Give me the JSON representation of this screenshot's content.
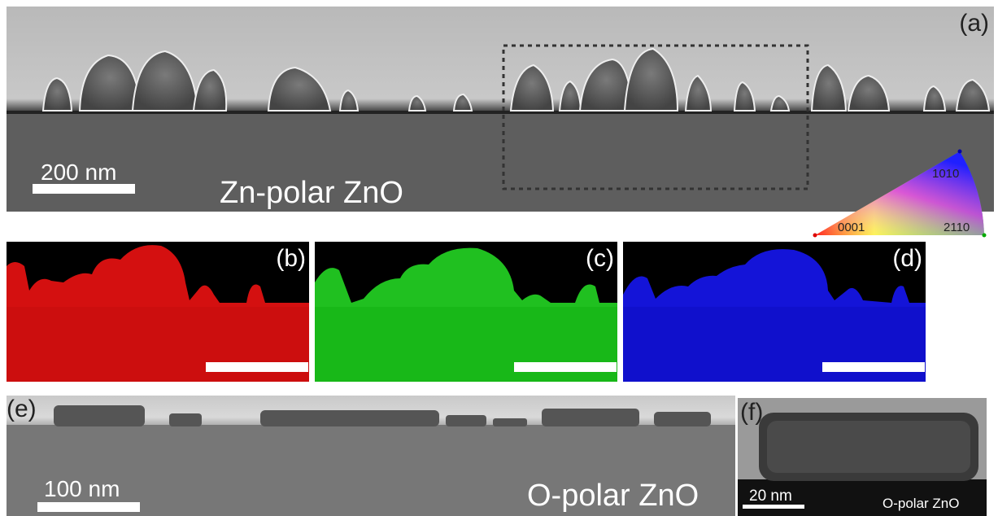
{
  "panels": {
    "a": {
      "label": "(a)",
      "scale_bar": "200 nm",
      "sample": "Zn-polar ZnO"
    },
    "b": {
      "label": "(b)",
      "tint": "#e01010"
    },
    "c": {
      "label": "(c)",
      "tint": "#10d010"
    },
    "d": {
      "label": "(d)",
      "tint": "#1010e0"
    },
    "e": {
      "label": "(e)",
      "scale_bar": "100 nm",
      "sample": "O-polar ZnO"
    },
    "f": {
      "label": "(f)",
      "scale_bar": "20 nm",
      "sample": "O-polar ZnO"
    }
  },
  "ipf_legend": {
    "corner_0001": "0001",
    "corner_1010": "1010",
    "corner_2110": "2110"
  }
}
